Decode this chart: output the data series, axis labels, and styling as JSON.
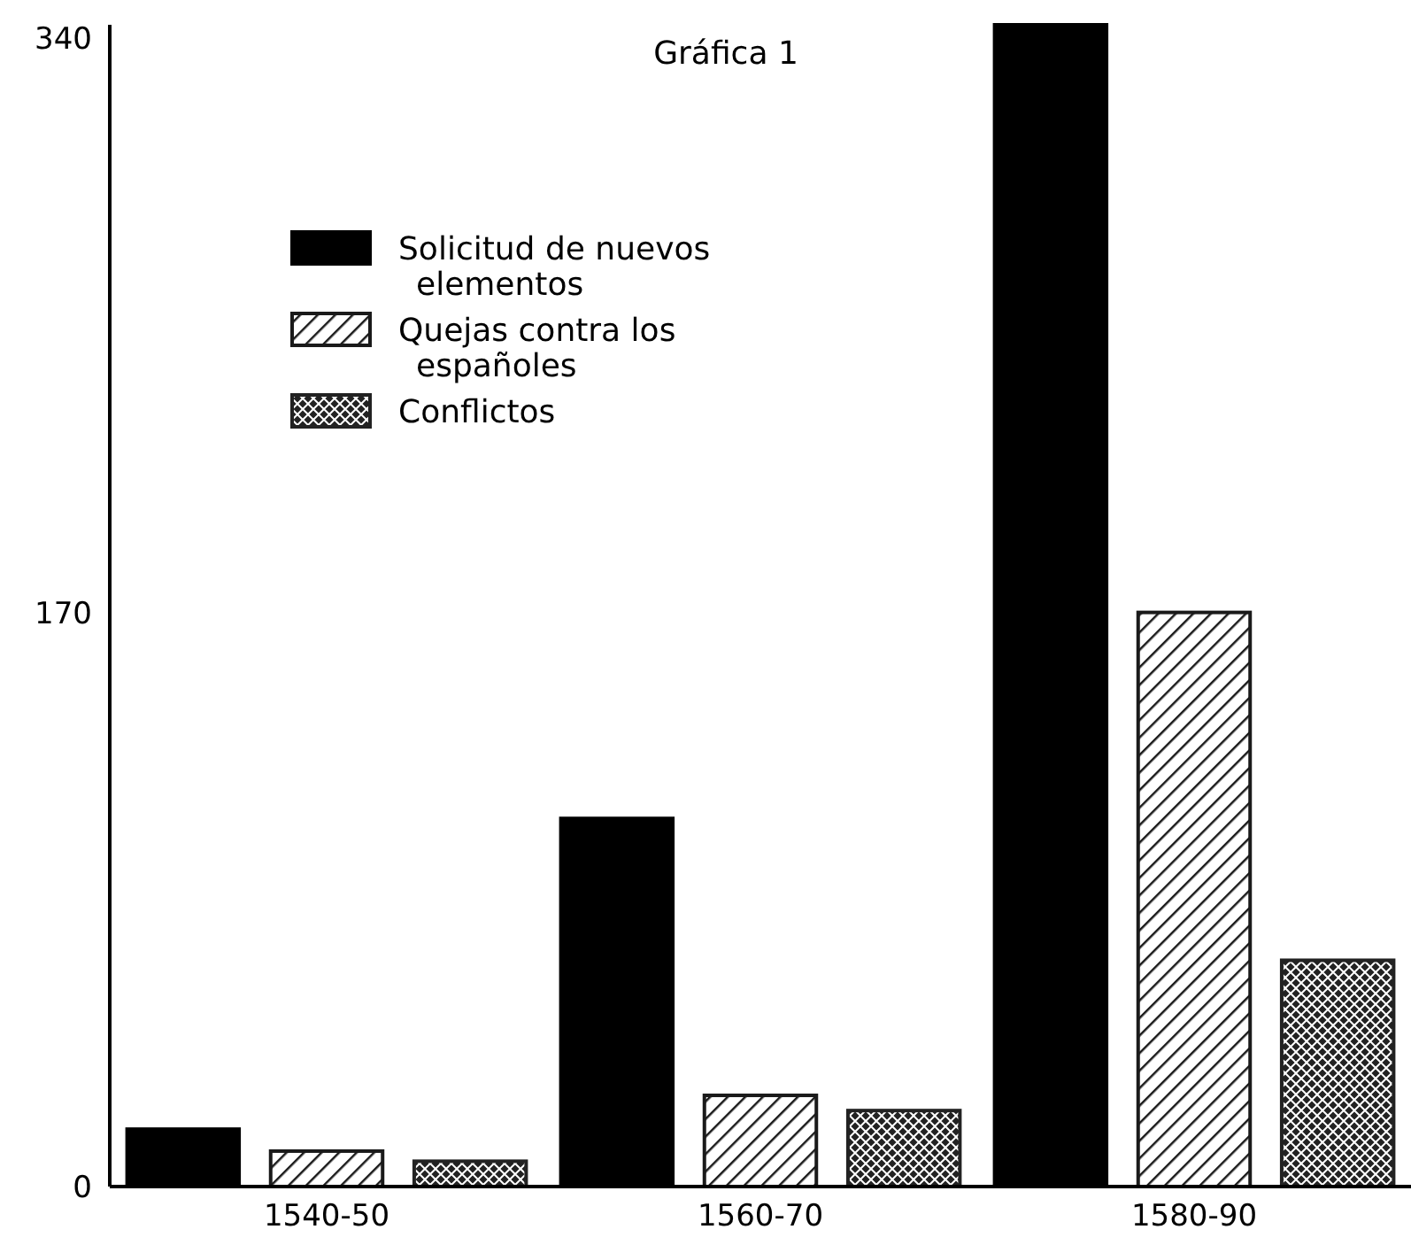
{
  "chart_data": {
    "type": "bar",
    "title": "Gráfica 1",
    "categories": [
      "1540-50",
      "1560-70",
      "1580-90"
    ],
    "series": [
      {
        "name": "Solicitud de nuevos elementos",
        "color": "#000000",
        "values": [
          17,
          109,
          344
        ]
      },
      {
        "name": "Quejas contra los españoles",
        "color": "#1a1a1a",
        "values": [
          10.5,
          27,
          170
        ]
      },
      {
        "name": "Conflictos",
        "color": "#222222",
        "values": [
          7.5,
          22.5,
          67
        ]
      }
    ],
    "ylim": [
      0,
      344
    ],
    "yticks": [
      0,
      170,
      340
    ],
    "grid": false,
    "legend": "top left"
  }
}
